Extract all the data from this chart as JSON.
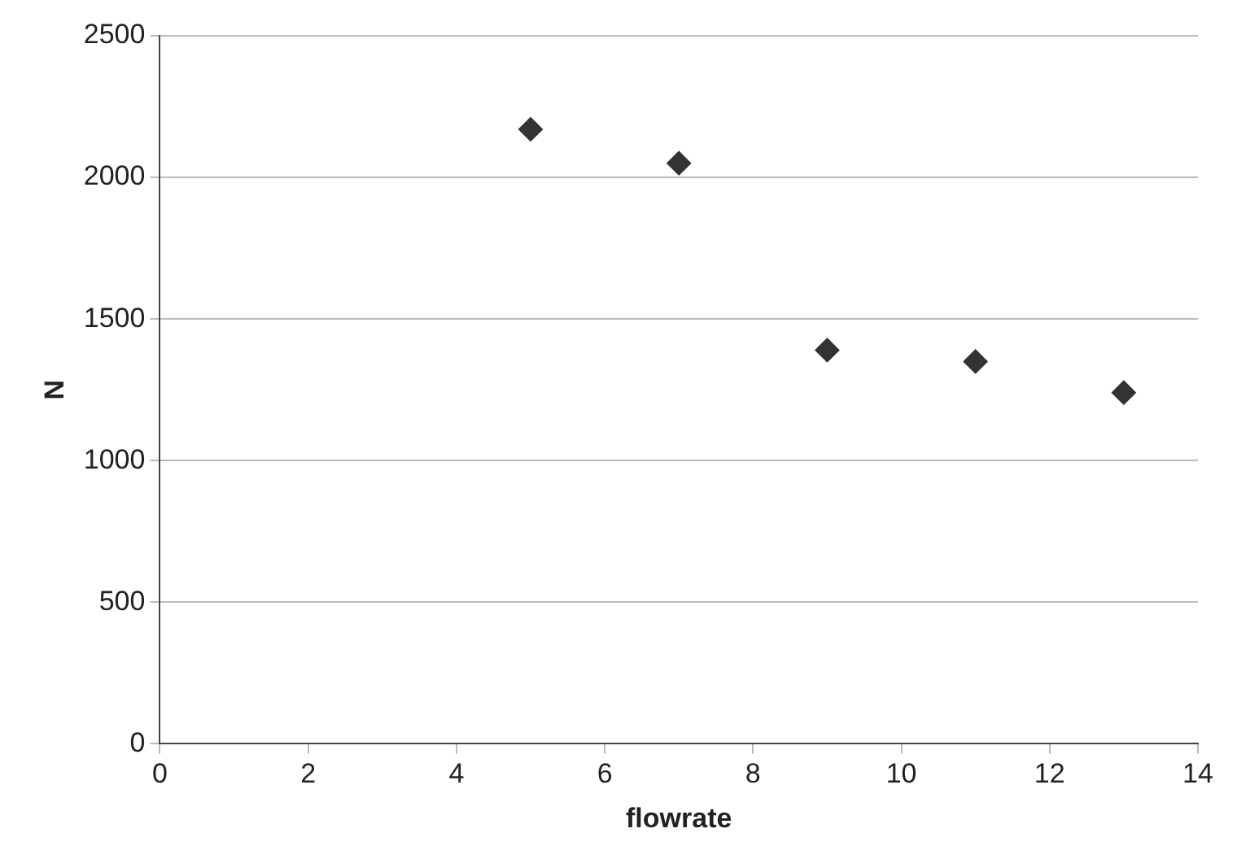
{
  "chart_data": {
    "type": "scatter",
    "xlabel": "flowrate",
    "ylabel": "N",
    "x": [
      5,
      7,
      9,
      11,
      13
    ],
    "values": [
      2170,
      2050,
      1390,
      1350,
      1240
    ],
    "color": "#333333",
    "marker": "diamond",
    "xlim": [
      0,
      14
    ],
    "xticks": [
      0,
      2,
      4,
      6,
      8,
      10,
      12,
      14
    ],
    "ylim": [
      0,
      2500
    ],
    "yticks": [
      0,
      500,
      1000,
      1500,
      2000,
      2500
    ],
    "grid": "y"
  }
}
